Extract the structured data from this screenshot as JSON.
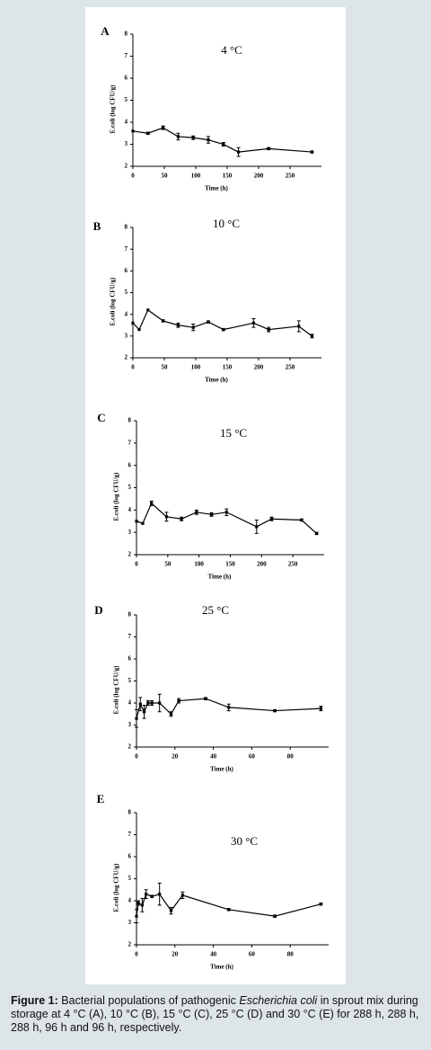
{
  "chart_data": [
    {
      "type": "line",
      "panel_label": "A",
      "title": "4 °C",
      "ylabel": "E.coli (log CFU/g)",
      "xlabel": "Time (h)",
      "x": [
        0,
        24,
        48,
        72,
        96,
        120,
        144,
        168,
        216,
        285
      ],
      "values": [
        3.6,
        3.5,
        3.75,
        3.35,
        3.3,
        3.2,
        3.0,
        2.65,
        2.8,
        2.65
      ],
      "errors": [
        null,
        0.05,
        0.08,
        0.15,
        0.08,
        0.15,
        0.08,
        0.2,
        0.05,
        0.05
      ],
      "color": "#000000",
      "xlim": [
        0,
        300
      ],
      "xticks": [
        0,
        50,
        100,
        150,
        200,
        250
      ],
      "ylim": [
        2,
        8
      ],
      "yticks": [
        2,
        3,
        4,
        5,
        6,
        7,
        8
      ]
    },
    {
      "type": "line",
      "panel_label": "B",
      "title": "10 °C",
      "ylabel": "E.coli (log CFU/g)",
      "xlabel": "Time (h)",
      "x": [
        0,
        10,
        24,
        48,
        72,
        96,
        120,
        144,
        192,
        216,
        264,
        285
      ],
      "values": [
        3.6,
        3.3,
        4.2,
        3.7,
        3.5,
        3.4,
        3.65,
        3.3,
        3.6,
        3.3,
        3.45,
        3.0
      ],
      "errors": [
        null,
        null,
        null,
        0.05,
        0.1,
        0.15,
        0.05,
        0.05,
        0.2,
        0.1,
        0.25,
        0.08
      ],
      "color": "#000000",
      "xlim": [
        0,
        300
      ],
      "xticks": [
        0,
        50,
        100,
        150,
        200,
        250
      ],
      "ylim": [
        2,
        8
      ],
      "yticks": [
        2,
        3,
        4,
        5,
        6,
        7,
        8
      ]
    },
    {
      "type": "line",
      "panel_label": "C",
      "title": "15 °C",
      "ylabel": "E.coli (log CFU/g)",
      "xlabel": "Time (h)",
      "x": [
        0,
        10,
        24,
        48,
        72,
        96,
        120,
        144,
        192,
        216,
        264,
        288
      ],
      "values": [
        3.5,
        3.4,
        4.3,
        3.7,
        3.6,
        3.9,
        3.8,
        3.9,
        3.25,
        3.6,
        3.55,
        2.95
      ],
      "errors": [
        null,
        null,
        0.1,
        0.2,
        0.08,
        0.1,
        0.08,
        0.15,
        0.3,
        0.08,
        0.05,
        0.05
      ],
      "color": "#000000",
      "xlim": [
        0,
        300
      ],
      "xticks": [
        0,
        50,
        100,
        150,
        200,
        250
      ],
      "ylim": [
        2,
        8
      ],
      "yticks": [
        2,
        3,
        4,
        5,
        6,
        7,
        8
      ]
    },
    {
      "type": "line",
      "panel_label": "D",
      "title": "25 °C",
      "ylabel": "E.coli (log CFU/g)",
      "xlabel": "Time (h)",
      "x": [
        0,
        2,
        4,
        6,
        8,
        12,
        18,
        22,
        36,
        48,
        72,
        96
      ],
      "values": [
        3.3,
        3.95,
        3.6,
        4.0,
        4.0,
        4.0,
        3.5,
        4.1,
        4.2,
        3.8,
        3.65,
        3.75
      ],
      "errors": [
        0.4,
        0.3,
        0.3,
        0.1,
        0.1,
        0.4,
        0.1,
        0.1,
        0.05,
        0.15,
        0.05,
        0.1
      ],
      "color": "#000000",
      "xlim": [
        0,
        100
      ],
      "xticks": [
        0,
        20,
        40,
        60,
        80
      ],
      "ylim": [
        2,
        8
      ],
      "yticks": [
        2,
        3,
        4,
        5,
        6,
        7,
        8
      ]
    },
    {
      "type": "line",
      "panel_label": "E",
      "title": "30 °C",
      "ylabel": "E.coli (log CFU/g)",
      "xlabel": "Time (h)",
      "x": [
        0,
        1,
        3,
        5,
        8,
        12,
        18,
        24,
        48,
        72,
        96
      ],
      "values": [
        3.3,
        3.9,
        3.8,
        4.3,
        4.2,
        4.3,
        3.55,
        4.25,
        3.6,
        3.3,
        3.85
      ],
      "errors": [
        0.3,
        0.1,
        0.3,
        0.2,
        0.05,
        0.5,
        0.15,
        0.15,
        0.05,
        0.05,
        0.05
      ],
      "color": "#000000",
      "xlim": [
        0,
        100
      ],
      "xticks": [
        0,
        20,
        40,
        60,
        80
      ],
      "ylim": [
        2,
        8
      ],
      "yticks": [
        2,
        3,
        4,
        5,
        6,
        7,
        8
      ]
    }
  ],
  "caption": {
    "label": "Figure 1:",
    "text_before": "Bacterial populations of pathogenic",
    "italic": "Escherichia coli",
    "text_after": "in sprout mix during storage at 4 °C (A), 10 °C (B), 15 °C (C), 25 °C (D) and 30 °C (E) for 288 h, 288 h, 288 h, 96 h and 96 h, respectively."
  }
}
